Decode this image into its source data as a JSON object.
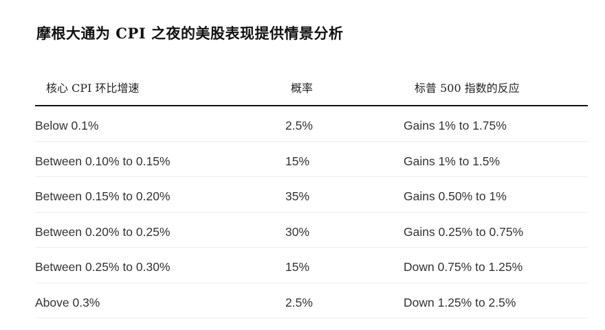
{
  "title": "摩根大通为 CPI 之夜的美股表现提供情景分析",
  "table": {
    "headers": [
      "核心 CPI 环比增速",
      "概率",
      "标普 500 指数的反应"
    ],
    "rows": [
      [
        "Below 0.1%",
        "2.5%",
        "Gains 1% to 1.75%"
      ],
      [
        "Between 0.10% to 0.15%",
        "15%",
        "Gains 1% to 1.5%"
      ],
      [
        "Between 0.15% to 0.20%",
        "35%",
        "Gains  0.50% to 1%"
      ],
      [
        "Between 0.20% to 0.25%",
        "30%",
        "Gains 0.25% to 0.75%"
      ],
      [
        "Between 0.25% to 0.30%",
        "15%",
        "Down 0.75% to 1.25%"
      ],
      [
        "Above 0.3%",
        "2.5%",
        "Down 1.25% to 2.5%"
      ]
    ]
  }
}
